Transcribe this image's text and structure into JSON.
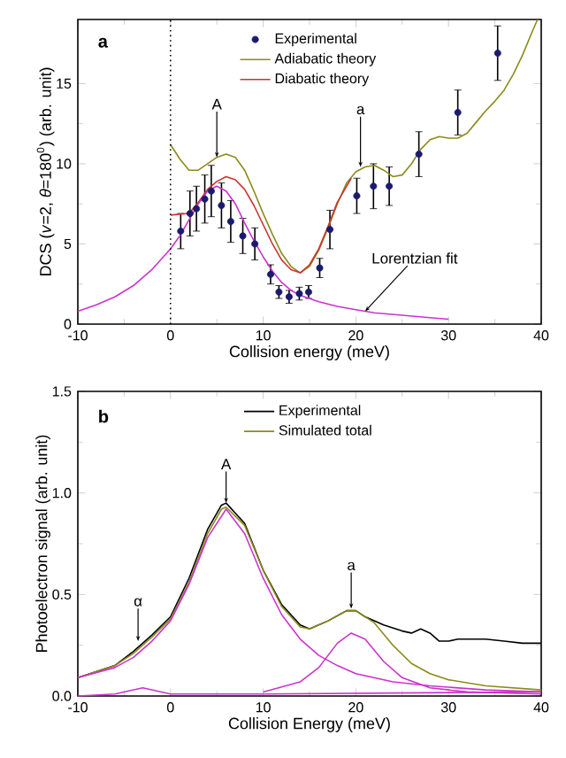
{
  "chart_data": [
    {
      "type": "line",
      "xlabel": "Collision energy (meV)",
      "ylabel": "DCS (*v*=2, *θ*=180$^{0}$) (arb. unit)",
      "xlim": [
        -10,
        40
      ],
      "xticks": [
        -10,
        0,
        10,
        20,
        30,
        40
      ],
      "ylim": [
        0,
        19
      ],
      "yticks": [
        0,
        5,
        10,
        15
      ],
      "legend": "top",
      "annotations": [
        "a",
        {
          "text": "A",
          "x": 5,
          "y": 10.4
        },
        {
          "text": "a",
          "x": 20.5,
          "y": 9.8
        },
        {
          "text": "Lorentzian fit",
          "x": 21,
          "y": 0.8
        }
      ],
      "ref_lines": [
        {
          "axis": "x",
          "value": 0,
          "line_style": "dotted"
        }
      ],
      "series": [
        {
          "name": "Experimental",
          "type": "scatter",
          "color": "#1a1a6e",
          "x": [
            1.1,
            2.1,
            2.8,
            3.7,
            4.4,
            5.5,
            6.5,
            7.8,
            9.1,
            10.8,
            11.7,
            12.8,
            13.9,
            14.9,
            16.1,
            17.2,
            20.1,
            21.9,
            23.6,
            26.8,
            31.0,
            35.3
          ],
          "values": [
            5.8,
            6.9,
            7.2,
            7.8,
            8.3,
            7.4,
            6.4,
            5.5,
            5.0,
            3.1,
            2.0,
            1.7,
            1.9,
            2.0,
            3.5,
            5.9,
            8.0,
            8.6,
            8.6,
            10.6,
            13.2,
            16.9
          ],
          "errors": [
            1.1,
            1.4,
            1.4,
            1.5,
            1.6,
            1.4,
            1.3,
            1.1,
            1.0,
            0.6,
            0.4,
            0.4,
            0.4,
            0.4,
            0.6,
            1.2,
            1.1,
            1.4,
            1.2,
            1.4,
            1.4,
            1.7
          ]
        },
        {
          "name": "Adiabatic theory",
          "marker": "none",
          "color": "#8b8b1a",
          "x": [
            0,
            1,
            2,
            3,
            4,
            5,
            6,
            7,
            8,
            9,
            10,
            11,
            12,
            13,
            14,
            15,
            16,
            17,
            18,
            19,
            20,
            21,
            22,
            23,
            24,
            25,
            26,
            27,
            28,
            29,
            30,
            31,
            32,
            33,
            34,
            35,
            36,
            37,
            38,
            39,
            39.6
          ],
          "values": [
            11.2,
            10.3,
            9.6,
            9.6,
            10.0,
            10.4,
            10.6,
            10.4,
            9.6,
            8.3,
            6.9,
            5.6,
            4.4,
            3.6,
            3.2,
            3.6,
            4.6,
            6.0,
            7.5,
            8.8,
            9.5,
            9.8,
            9.9,
            9.6,
            9.2,
            9.3,
            10.0,
            10.9,
            11.5,
            11.7,
            11.6,
            11.6,
            11.9,
            12.6,
            13.3,
            13.9,
            14.6,
            15.6,
            16.8,
            18.2,
            19.0
          ]
        },
        {
          "name": "Diabatic theory",
          "marker": "none",
          "color": "#cc3333",
          "x": [
            0,
            2,
            3,
            4,
            5,
            6,
            7,
            8,
            9,
            10,
            11,
            12,
            13,
            14,
            15,
            16,
            17,
            18,
            19,
            19.5
          ],
          "values": [
            6.8,
            6.9,
            7.6,
            8.4,
            8.9,
            9.2,
            9.0,
            8.4,
            7.4,
            6.2,
            5.0,
            4.0,
            3.4,
            3.2,
            3.7,
            4.7,
            6.1,
            7.6,
            8.6,
            9.1
          ]
        },
        {
          "marker": "none",
          "color": "#cc33cc",
          "x": [
            -10,
            -8,
            -6,
            -4,
            -2,
            0,
            1,
            2,
            3,
            4,
            5,
            6,
            7,
            8,
            9,
            10,
            11,
            12,
            13,
            14,
            16,
            18,
            20,
            22,
            24,
            26,
            28,
            30
          ],
          "values": [
            0.8,
            1.2,
            1.7,
            2.4,
            3.4,
            4.7,
            5.5,
            6.5,
            7.5,
            8.3,
            8.6,
            8.3,
            7.5,
            6.3,
            5.2,
            4.2,
            3.3,
            2.6,
            2.1,
            1.8,
            1.4,
            1.1,
            0.9,
            0.7,
            0.6,
            0.5,
            0.4,
            0.3
          ]
        }
      ]
    },
    {
      "type": "line",
      "xlabel": "Collision Energy (meV)",
      "ylabel": "Photoelectron signal (arb. unit)",
      "xlim": [
        -10,
        40
      ],
      "xticks": [
        -10,
        0,
        10,
        20,
        30,
        40
      ],
      "ylim": [
        0,
        1.5
      ],
      "yticks": [
        {
          "value": 0,
          "label": "0.0"
        },
        0.5,
        {
          "value": 1,
          "label": "1.0"
        },
        1.5
      ],
      "legend": "top",
      "annotations": [
        "b",
        {
          "text": "A",
          "x": 6,
          "y": 0.95
        },
        {
          "text": "a",
          "x": 19.5,
          "y": 0.43
        },
        {
          "text": "α",
          "x": -3.5,
          "y": 0.27
        }
      ],
      "series": [
        {
          "name": "Experimental",
          "color": "#000000",
          "x": [
            -10,
            -6,
            -4,
            -2,
            0,
            2,
            4,
            5.5,
            6,
            8,
            10,
            12,
            14,
            15,
            17,
            19,
            20,
            21,
            23,
            25,
            26,
            27,
            28,
            29,
            30,
            31,
            32,
            34,
            36,
            38,
            40
          ],
          "values": [
            0.09,
            0.15,
            0.22,
            0.3,
            0.39,
            0.58,
            0.82,
            0.94,
            0.95,
            0.85,
            0.62,
            0.45,
            0.35,
            0.33,
            0.37,
            0.42,
            0.42,
            0.39,
            0.35,
            0.32,
            0.31,
            0.33,
            0.31,
            0.27,
            0.27,
            0.28,
            0.28,
            0.28,
            0.27,
            0.26,
            0.26
          ]
        },
        {
          "name": "Simulated total",
          "color": "#8b8b1a",
          "x": [
            -10,
            -6,
            -4,
            -2,
            0,
            2,
            4,
            5.5,
            6,
            8,
            10,
            12,
            14,
            15,
            17,
            19,
            20,
            22,
            24,
            26,
            28,
            30,
            34,
            40
          ],
          "values": [
            0.09,
            0.15,
            0.21,
            0.29,
            0.38,
            0.56,
            0.8,
            0.92,
            0.93,
            0.84,
            0.62,
            0.44,
            0.34,
            0.33,
            0.37,
            0.42,
            0.42,
            0.36,
            0.25,
            0.16,
            0.11,
            0.08,
            0.05,
            0.03
          ]
        },
        {
          "color": "#cc33cc",
          "x": [
            -10,
            -6,
            -4,
            -2,
            0,
            2,
            4,
            6,
            8,
            10,
            12,
            14,
            16,
            18,
            20,
            24,
            28,
            34,
            40
          ],
          "values": [
            0.09,
            0.14,
            0.19,
            0.27,
            0.37,
            0.55,
            0.78,
            0.92,
            0.8,
            0.58,
            0.4,
            0.28,
            0.2,
            0.15,
            0.11,
            0.07,
            0.05,
            0.03,
            0.02
          ]
        },
        {
          "color": "#cc33cc",
          "x": [
            10,
            14,
            16,
            18,
            19.5,
            21,
            23,
            25,
            28,
            32,
            40
          ],
          "values": [
            0.02,
            0.07,
            0.14,
            0.26,
            0.31,
            0.28,
            0.17,
            0.09,
            0.04,
            0.02,
            0.01
          ]
        },
        {
          "color": "#cc33cc",
          "x": [
            -10,
            -6,
            -3,
            0,
            10,
            40
          ],
          "values": [
            0.0,
            0.01,
            0.04,
            0.01,
            0.01,
            0.02
          ]
        }
      ]
    }
  ]
}
